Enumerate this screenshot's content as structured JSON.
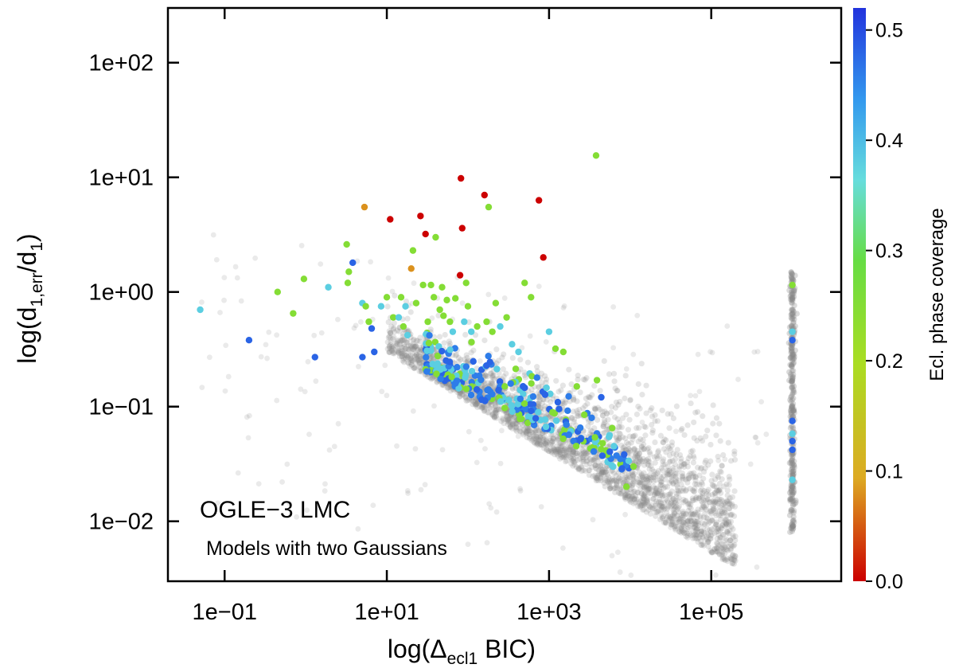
{
  "chart_data": {
    "type": "scatter",
    "title": "",
    "xlabel": "log(Δecl1 BIC)",
    "xlabel_parts": {
      "prefix": "log(Δ",
      "subscript": "ecl1",
      "suffix": " BIC)"
    },
    "ylabel": "log(d1,err/d1)",
    "ylabel_parts": {
      "prefix": "log(d",
      "sub1": "1,err",
      "mid": "/d",
      "sub2": "1",
      "suffix": ")"
    },
    "x_scale": "log",
    "y_scale": "log",
    "xlim": [
      0.02,
      4000000
    ],
    "ylim": [
      0.003,
      300
    ],
    "x_ticks": [
      0.1,
      10,
      1000,
      100000
    ],
    "x_tick_labels": [
      "1e−01",
      "1e+01",
      "1e+03",
      "1e+05"
    ],
    "y_ticks": [
      0.01,
      0.1,
      1,
      10,
      100
    ],
    "y_tick_labels": [
      "1e−02",
      "1e−01",
      "1e+00",
      "1e+01",
      "1e+02"
    ],
    "grid": false,
    "annotations": [
      "OGLE−3 LMC",
      "Models with two Gaussians"
    ],
    "colorbar": {
      "label": "Ecl. phase coverage",
      "range": [
        0.0,
        0.52
      ],
      "ticks": [
        0.0,
        0.1,
        0.2,
        0.3,
        0.4,
        0.5
      ],
      "tick_labels": [
        "0.0",
        "0.1",
        "0.2",
        "0.3",
        "0.4",
        "0.5"
      ],
      "colormap": [
        "#cc0000",
        "#ddaa22",
        "#aadd22",
        "#66dd44",
        "#66dddd",
        "#3399ee",
        "#2233dd"
      ]
    },
    "background_series": {
      "name": "",
      "color": "#888888",
      "description": "dense grey cloud of all models, trending from (10,0.3) to (100000,0.005) plus vertical column at x≈1e6",
      "trend": {
        "x_start": 20,
        "y_start": 0.25,
        "x_end": 100000,
        "y_end": 0.006
      },
      "column_x": 1000000,
      "column_y_range": [
        0.008,
        1.5
      ]
    },
    "series": [
      {
        "name": "",
        "points": [
          [
            0.05,
            0.7,
            0.38
          ],
          [
            0.2,
            0.38,
            0.48
          ],
          [
            0.45,
            1.0,
            0.25
          ],
          [
            0.7,
            0.65,
            0.25
          ],
          [
            0.95,
            1.3,
            0.25
          ],
          [
            1.3,
            0.27,
            0.48
          ],
          [
            1.9,
            1.1,
            0.38
          ],
          [
            3.2,
            2.6,
            0.25
          ],
          [
            3.3,
            1.2,
            0.25
          ],
          [
            3.4,
            1.5,
            0.25
          ],
          [
            3.8,
            1.8,
            0.48
          ],
          [
            5,
            0.8,
            0.38
          ],
          [
            5.5,
            0.75,
            0.25
          ],
          [
            5.3,
            5.5,
            0.08
          ],
          [
            6,
            0.55,
            0.25
          ],
          [
            5,
            0.27,
            0.48
          ],
          [
            6.5,
            0.48,
            0.48
          ],
          [
            7,
            0.3,
            0.48
          ],
          [
            8.5,
            0.75,
            0.38
          ],
          [
            10,
            0.9,
            0.25
          ],
          [
            11,
            4.3,
            0.0
          ],
          [
            12,
            0.6,
            0.25
          ],
          [
            14,
            0.6,
            0.38
          ],
          [
            15,
            0.9,
            0.25
          ],
          [
            16,
            0.5,
            0.25
          ],
          [
            17,
            0.75,
            0.38
          ],
          [
            18,
            0.42,
            0.38
          ],
          [
            20,
            1.6,
            0.08
          ],
          [
            21,
            2.3,
            0.25
          ],
          [
            23,
            0.8,
            0.25
          ],
          [
            26,
            4.6,
            0.0
          ],
          [
            28,
            1.15,
            0.25
          ],
          [
            30,
            3.2,
            0.0
          ],
          [
            32,
            0.55,
            0.25
          ],
          [
            35,
            1.15,
            0.25
          ],
          [
            38,
            0.9,
            0.25
          ],
          [
            40,
            3.0,
            0.25
          ],
          [
            45,
            0.7,
            0.25
          ],
          [
            48,
            1.1,
            0.25
          ],
          [
            50,
            0.62,
            0.25
          ],
          [
            55,
            0.85,
            0.25
          ],
          [
            60,
            0.55,
            0.25
          ],
          [
            65,
            0.45,
            0.38
          ],
          [
            70,
            0.88,
            0.25
          ],
          [
            80,
            1.4,
            0.0
          ],
          [
            82,
            9.8,
            0.0
          ],
          [
            85,
            3.6,
            0.0
          ],
          [
            90,
            0.55,
            0.38
          ],
          [
            95,
            1.2,
            0.25
          ],
          [
            100,
            0.75,
            0.25
          ],
          [
            110,
            0.45,
            0.38
          ],
          [
            130,
            0.5,
            0.25
          ],
          [
            160,
            7.0,
            0.0
          ],
          [
            180,
            5.5,
            0.25
          ],
          [
            170,
            0.55,
            0.25
          ],
          [
            200,
            0.45,
            0.25
          ],
          [
            220,
            0.8,
            0.25
          ],
          [
            250,
            0.5,
            0.38
          ],
          [
            300,
            0.6,
            0.25
          ],
          [
            350,
            0.35,
            0.38
          ],
          [
            420,
            0.3,
            0.38
          ],
          [
            500,
            1.2,
            0.25
          ],
          [
            600,
            0.9,
            0.25
          ],
          [
            750,
            6.3,
            0.0
          ],
          [
            850,
            2.0,
            0.0
          ],
          [
            1000,
            0.45,
            0.38
          ],
          [
            1200,
            0.32,
            0.25
          ],
          [
            1500,
            0.3,
            0.25
          ],
          [
            2200,
            0.15,
            0.25
          ],
          [
            3800,
            15.5,
            0.25
          ],
          [
            3900,
            0.17,
            0.25
          ],
          [
            6000,
            0.065,
            0.25
          ],
          [
            9000,
            0.02,
            0.25
          ],
          [
            11000,
            0.03,
            0.25
          ],
          [
            1000000,
            1.15,
            0.25
          ],
          [
            1000000,
            0.45,
            0.38
          ],
          [
            1000000,
            0.38,
            0.48
          ],
          [
            1000000,
            0.075,
            0.48
          ],
          [
            1000000,
            0.05,
            0.48
          ],
          [
            1000000,
            0.042,
            0.48
          ],
          [
            1000000,
            0.023,
            0.38
          ],
          [
            1000000,
            0.058,
            0.38
          ]
        ]
      }
    ],
    "dense_cluster": {
      "description": "blue/cyan points along the lower edge of grey cloud",
      "x_range": [
        30,
        10000
      ],
      "y_at_x_start": 0.2,
      "y_at_x_end": 0.025,
      "colors": [
        0.48,
        0.46,
        0.38,
        0.25
      ]
    }
  }
}
